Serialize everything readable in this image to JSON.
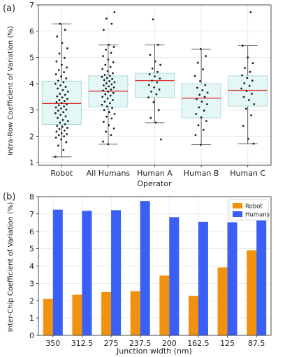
{
  "chart_data": [
    {
      "type": "box",
      "panel_label": "(a)",
      "xlabel": "Operator",
      "ylabel": "Intra-Row Coefficient of Variation (%)",
      "ylim": [
        0.9,
        7.0
      ],
      "yticks": [
        1,
        2,
        3,
        4,
        5,
        6,
        7
      ],
      "grid": true,
      "categories": [
        "Robot",
        "All Humans",
        "Human A",
        "Human B",
        "Human C"
      ],
      "boxes": [
        {
          "whisker_low": 1.22,
          "q1": 2.45,
          "median": 3.25,
          "q3": 4.1,
          "whisker_high": 6.28,
          "points": [
            1.22,
            1.48,
            1.65,
            1.78,
            1.88,
            1.95,
            2.0,
            2.05,
            2.08,
            2.12,
            2.18,
            2.22,
            2.28,
            2.32,
            2.36,
            2.4,
            2.46,
            2.52,
            2.58,
            2.62,
            2.7,
            2.76,
            2.82,
            2.88,
            2.92,
            2.98,
            3.02,
            3.06,
            3.1,
            3.14,
            3.18,
            3.22,
            3.26,
            3.3,
            3.34,
            3.38,
            3.42,
            3.48,
            3.52,
            3.58,
            3.62,
            3.7,
            3.76,
            3.82,
            3.88,
            3.94,
            4.0,
            4.06,
            4.12,
            4.2,
            4.28,
            4.36,
            4.44,
            4.52,
            4.62,
            4.72,
            4.85,
            4.98,
            5.15,
            5.35,
            5.55,
            5.8,
            6.05,
            6.28
          ]
        },
        {
          "whisker_low": 1.7,
          "q1": 3.12,
          "median": 3.72,
          "q3": 4.3,
          "whisker_high": 5.48,
          "points": [
            1.7,
            1.8,
            2.05,
            2.18,
            2.3,
            2.42,
            2.55,
            2.68,
            2.75,
            2.85,
            2.92,
            3.0,
            3.08,
            3.14,
            3.2,
            3.26,
            3.32,
            3.38,
            3.44,
            3.5,
            3.55,
            3.6,
            3.65,
            3.7,
            3.74,
            3.78,
            3.82,
            3.86,
            3.9,
            3.94,
            3.98,
            4.02,
            4.06,
            4.1,
            4.14,
            4.18,
            4.22,
            4.26,
            4.3,
            4.34,
            4.4,
            4.48,
            4.56,
            4.64,
            4.72,
            4.82,
            4.92,
            5.05,
            5.18,
            5.3,
            5.4,
            5.48,
            6.05,
            6.28,
            6.48,
            6.72
          ]
        },
        {
          "whisker_low": 2.52,
          "q1": 3.48,
          "median": 4.12,
          "q3": 4.4,
          "whisker_high": 5.48,
          "points": [
            1.88,
            2.52,
            2.7,
            3.0,
            3.3,
            3.48,
            3.6,
            3.7,
            3.78,
            3.86,
            3.95,
            4.05,
            4.12,
            4.2,
            4.28,
            4.36,
            4.45,
            4.58,
            4.72,
            4.85,
            5.1,
            5.48,
            6.45
          ]
        },
        {
          "whisker_low": 1.68,
          "q1": 2.7,
          "median": 3.45,
          "q3": 4.0,
          "whisker_high": 5.32,
          "points": [
            1.68,
            2.05,
            2.25,
            2.42,
            2.58,
            2.72,
            2.85,
            2.98,
            3.1,
            3.22,
            3.32,
            3.42,
            3.5,
            3.58,
            3.66,
            3.75,
            3.85,
            3.95,
            4.1,
            4.3,
            4.55,
            4.8,
            5.05,
            5.32
          ]
        },
        {
          "whisker_low": 1.72,
          "q1": 3.15,
          "median": 3.75,
          "q3": 4.3,
          "whisker_high": 5.45,
          "points": [
            1.72,
            1.9,
            2.4,
            2.8,
            3.05,
            3.22,
            3.38,
            3.5,
            3.62,
            3.72,
            3.82,
            3.92,
            4.02,
            4.12,
            4.22,
            4.32,
            4.45,
            4.6,
            4.78,
            5.0,
            5.45,
            6.72
          ]
        }
      ]
    },
    {
      "type": "bar",
      "panel_label": "(b)",
      "xlabel": "Junction width (nm)",
      "ylabel": "Inter-Chip Coefficient of Variation (%)",
      "ylim": [
        0,
        8
      ],
      "yticks": [
        0,
        1,
        2,
        3,
        4,
        5,
        6,
        7,
        8
      ],
      "grid": true,
      "legend_position": "top-right",
      "categories": [
        "350",
        "312.5",
        "275",
        "237.5",
        "200",
        "162.5",
        "125",
        "87.5"
      ],
      "series": [
        {
          "name": "Robot",
          "color": "#f0920f",
          "values": [
            2.1,
            2.35,
            2.5,
            2.55,
            3.45,
            2.28,
            3.92,
            4.9
          ]
        },
        {
          "name": "Humans",
          "color": "#3a5ff5",
          "values": [
            7.25,
            7.18,
            7.22,
            7.75,
            6.82,
            6.55,
            6.52,
            6.78
          ]
        }
      ]
    }
  ],
  "colors": {
    "box_fill": "#e3f7f6",
    "box_edge": "#a8d6d4",
    "median_line": "#e0312c",
    "whisker": "#4a4a4a",
    "point": "#1e1e1e",
    "grid": "#e6e6e6",
    "axis": "#222222"
  }
}
